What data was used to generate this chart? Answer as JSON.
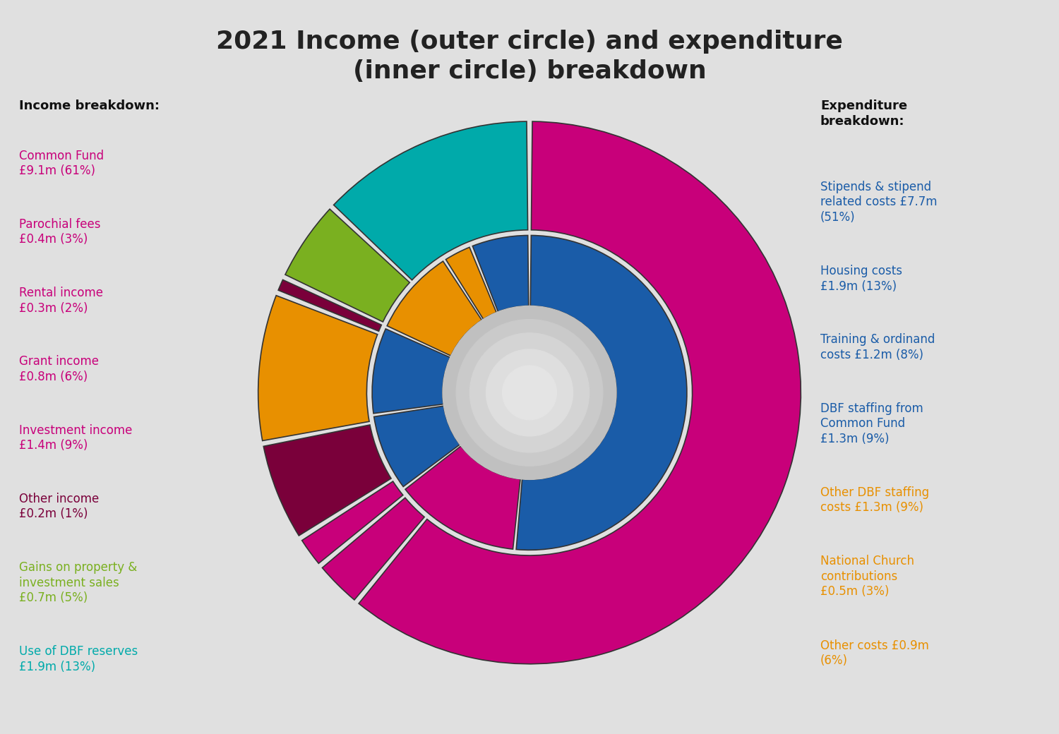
{
  "title": "2021 Income (outer circle) and expenditure\n(inner circle) breakdown",
  "title_fontsize": 26,
  "background_color": "#e0e0e0",
  "outer_values": [
    61,
    3,
    2,
    6,
    9,
    1,
    5,
    13
  ],
  "outer_colors": [
    "#c8007a",
    "#c8007a",
    "#c8007a",
    "#7a003a",
    "#e89000",
    "#7a003a",
    "#7ab020",
    "#00aaaa"
  ],
  "inner_values": [
    51,
    13,
    8,
    9,
    9,
    3,
    6
  ],
  "inner_colors": [
    "#1a5ca8",
    "#c8007a",
    "#1a5ca8",
    "#1a5ca8",
    "#e89000",
    "#e89000",
    "#1a5ca8"
  ],
  "income_header": "Income breakdown:",
  "income_entries": [
    {
      "text": "Common Fund\n£9.1m (61%)",
      "color": "#c8007a"
    },
    {
      "text": "Parochial fees\n£0.4m (3%)",
      "color": "#c8007a"
    },
    {
      "text": "Rental income\n£0.3m (2%)",
      "color": "#c8007a"
    },
    {
      "text": "Grant income\n£0.8m (6%)",
      "color": "#c8007a"
    },
    {
      "text": "Investment income\n£1.4m (9%)",
      "color": "#c8007a"
    },
    {
      "text": "Other income\n£0.2m (1%)",
      "color": "#7a003a"
    },
    {
      "text": "Gains on property &\ninvestment sales\n£0.7m (5%)",
      "color": "#7ab020"
    },
    {
      "text": "Use of DBF reserves\n£1.9m (13%)",
      "color": "#00aaaa"
    }
  ],
  "expenditure_header": "Expenditure\nbreakdown:",
  "expenditure_entries": [
    {
      "text": "Stipends & stipend\nrelated costs £7.7m\n(51%)",
      "color": "#1a5ca8"
    },
    {
      "text": "Housing costs\n£1.9m (13%)",
      "color": "#1a5ca8"
    },
    {
      "text": "Training & ordinand\ncosts £1.2m (8%)",
      "color": "#1a5ca8"
    },
    {
      "text": "DBF staffing from\nCommon Fund\n£1.3m (9%)",
      "color": "#1a5ca8"
    },
    {
      "text": "Other DBF staffing\ncosts £1.3m (9%)",
      "color": "#e89000"
    },
    {
      "text": "National Church\ncontributions\n£0.5m (3%)",
      "color": "#e89000"
    },
    {
      "text": "Other costs £0.9m\n(6%)",
      "color": "#e89000"
    }
  ]
}
